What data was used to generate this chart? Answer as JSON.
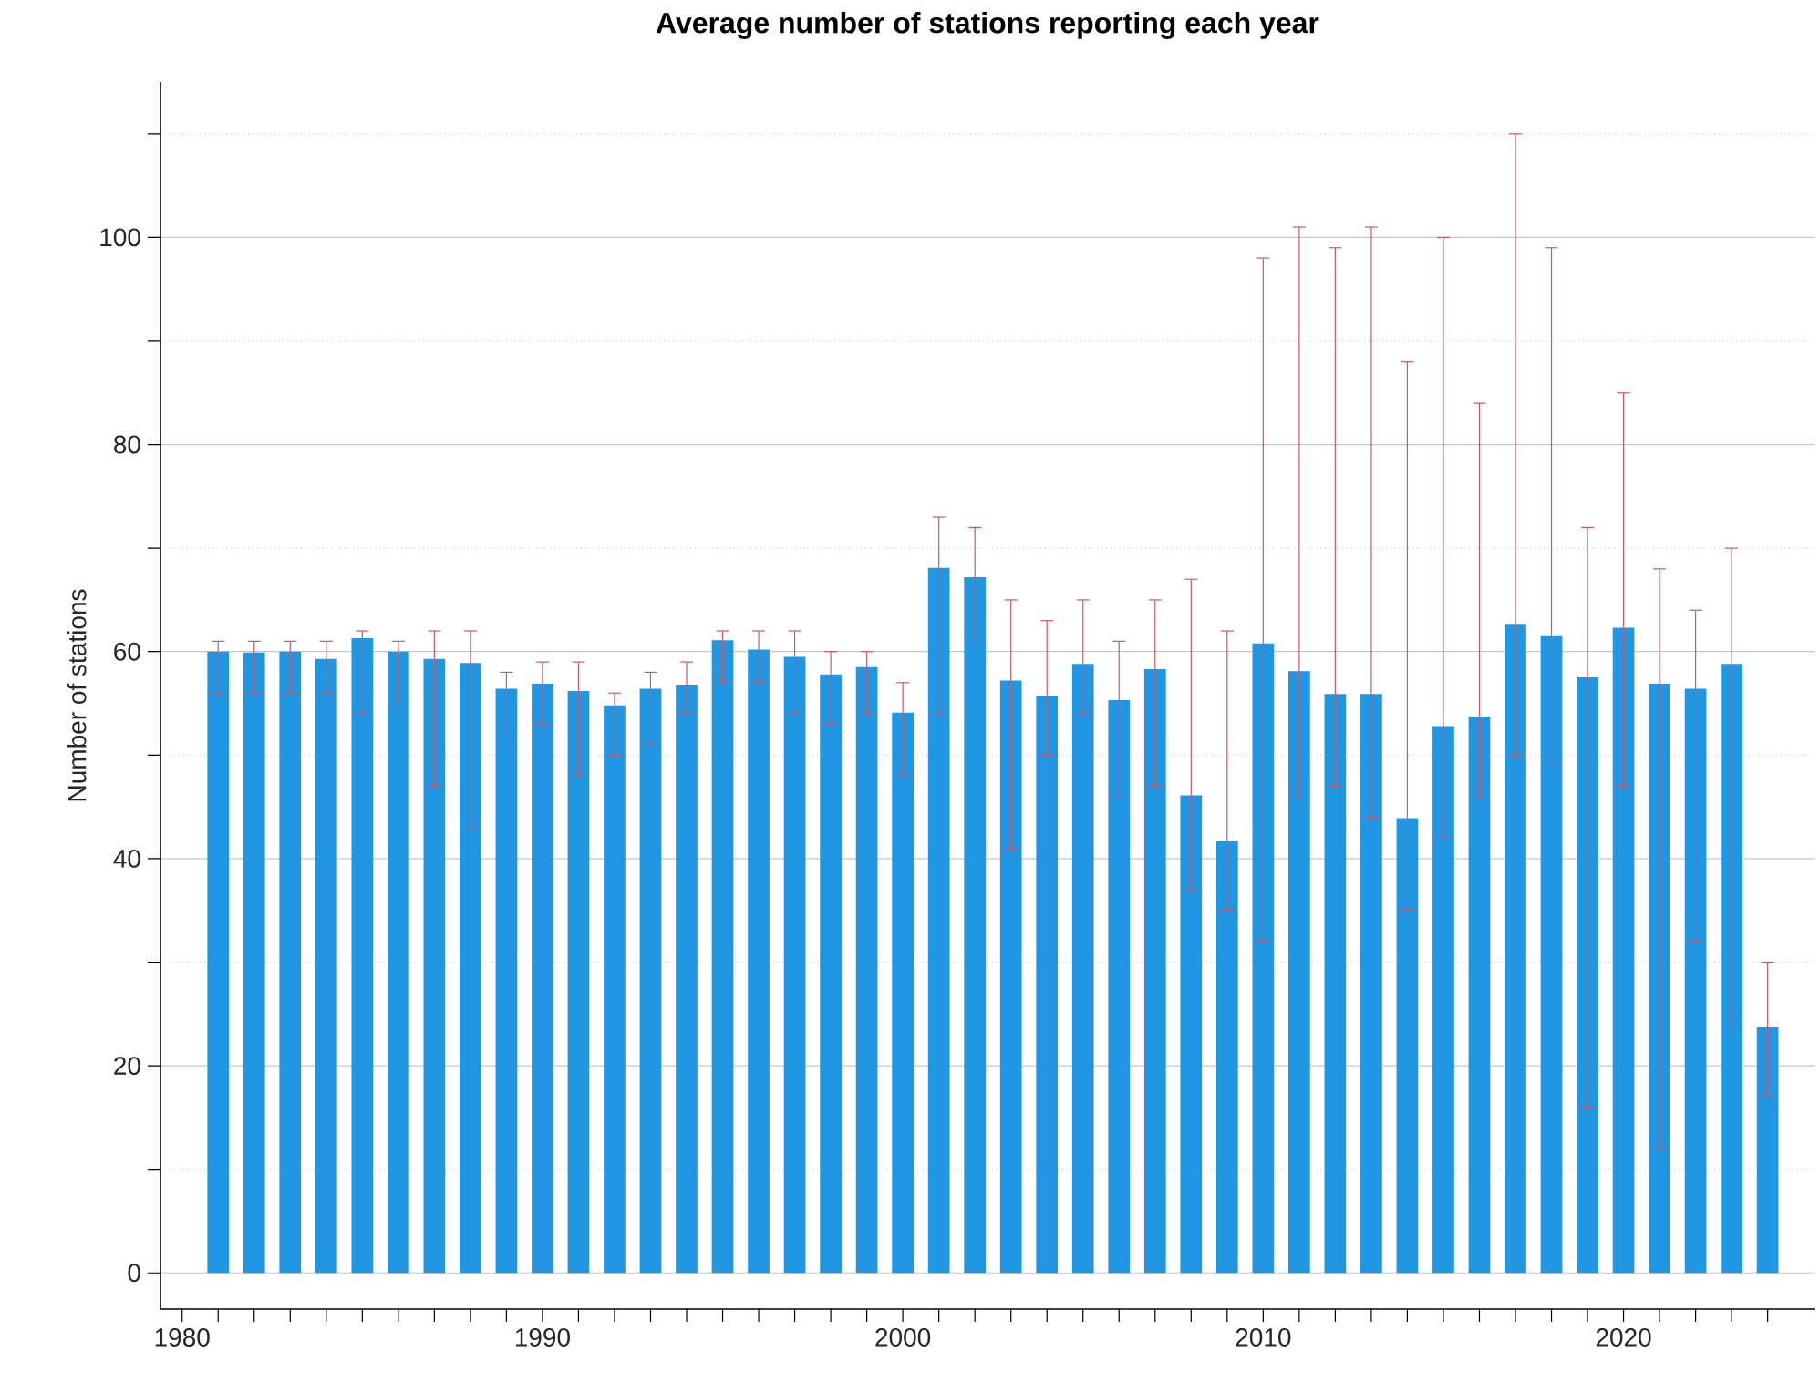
{
  "chart_data": {
    "type": "bar",
    "title": "Average number of stations reporting each year",
    "ylabel": "Number of stations",
    "x": [
      1981,
      1982,
      1983,
      1984,
      1985,
      1986,
      1987,
      1988,
      1989,
      1990,
      1991,
      1992,
      1993,
      1994,
      1995,
      1996,
      1997,
      1998,
      1999,
      2000,
      2001,
      2002,
      2003,
      2004,
      2005,
      2006,
      2007,
      2008,
      2009,
      2010,
      2011,
      2012,
      2013,
      2014,
      2015,
      2016,
      2017,
      2018,
      2019,
      2020,
      2021,
      2022,
      2023,
      2024
    ],
    "values": [
      60,
      59.9,
      60,
      59.3,
      61.3,
      60,
      59.3,
      58.9,
      56.4,
      56.9,
      56.2,
      54.8,
      56.4,
      56.8,
      61.1,
      60.2,
      59.5,
      57.8,
      58.5,
      54.1,
      68.1,
      67.2,
      57.2,
      55.7,
      58.8,
      55.3,
      58.3,
      46.1,
      41.7,
      60.8,
      58.1,
      55.9,
      55.9,
      43.9,
      52.8,
      53.7,
      62.6,
      61.5,
      57.5,
      62.3,
      56.9,
      56.4,
      58.8,
      23.7
    ],
    "errors": [
      [
        56,
        61
      ],
      [
        56,
        61
      ],
      [
        56,
        61
      ],
      [
        56,
        61
      ],
      [
        54,
        62
      ],
      [
        55,
        61
      ],
      [
        47,
        62
      ],
      [
        43,
        62
      ],
      [
        52,
        58
      ],
      [
        53,
        59
      ],
      [
        48,
        59
      ],
      [
        50,
        56
      ],
      [
        51,
        58
      ],
      [
        54,
        59
      ],
      [
        57,
        62
      ],
      [
        57,
        62
      ],
      [
        54,
        62
      ],
      [
        53,
        60
      ],
      [
        54,
        60
      ],
      [
        48,
        57
      ],
      [
        54,
        73
      ],
      [
        61,
        72
      ],
      [
        41,
        65
      ],
      [
        50,
        63
      ],
      [
        54,
        65
      ],
      [
        46,
        61
      ],
      [
        47,
        65
      ],
      [
        37,
        67
      ],
      [
        35,
        62
      ],
      [
        32,
        98
      ],
      [
        46,
        101
      ],
      [
        47,
        99
      ],
      [
        44,
        101
      ],
      [
        35,
        88
      ],
      [
        42,
        100
      ],
      [
        46,
        84
      ],
      [
        50,
        110
      ],
      [
        49,
        99
      ],
      [
        16,
        72
      ],
      [
        47,
        85
      ],
      [
        12,
        68
      ],
      [
        32,
        64
      ],
      [
        24,
        70
      ],
      [
        17,
        30
      ]
    ],
    "color": "#2196e3",
    "xlim": [
      1979.4,
      2025.3
    ],
    "xticks": [
      1980,
      {
        "value": 1981,
        "label": null
      },
      {
        "value": 1982,
        "label": null
      },
      {
        "value": 1983,
        "label": null
      },
      {
        "value": 1984,
        "label": null
      },
      {
        "value": 1985,
        "label": null
      },
      {
        "value": 1986,
        "label": null
      },
      {
        "value": 1987,
        "label": null
      },
      {
        "value": 1988,
        "label": null
      },
      {
        "value": 1989,
        "label": null
      },
      1990,
      {
        "value": 1991,
        "label": null
      },
      {
        "value": 1992,
        "label": null
      },
      {
        "value": 1993,
        "label": null
      },
      {
        "value": 1994,
        "label": null
      },
      {
        "value": 1995,
        "label": null
      },
      {
        "value": 1996,
        "label": null
      },
      {
        "value": 1997,
        "label": null
      },
      {
        "value": 1998,
        "label": null
      },
      {
        "value": 1999,
        "label": null
      },
      2000,
      {
        "value": 2001,
        "label": null
      },
      {
        "value": 2002,
        "label": null
      },
      {
        "value": 2003,
        "label": null
      },
      {
        "value": 2004,
        "label": null
      },
      {
        "value": 2005,
        "label": null
      },
      {
        "value": 2006,
        "label": null
      },
      {
        "value": 2007,
        "label": null
      },
      {
        "value": 2008,
        "label": null
      },
      {
        "value": 2009,
        "label": null
      },
      2010,
      {
        "value": 2011,
        "label": null
      },
      {
        "value": 2012,
        "label": null
      },
      {
        "value": 2013,
        "label": null
      },
      {
        "value": 2014,
        "label": null
      },
      {
        "value": 2015,
        "label": null
      },
      {
        "value": 2016,
        "label": null
      },
      {
        "value": 2017,
        "label": null
      },
      {
        "value": 2018,
        "label": null
      },
      {
        "value": 2019,
        "label": null
      },
      2020,
      {
        "value": 2021,
        "label": null
      },
      {
        "value": 2022,
        "label": null
      },
      {
        "value": 2023,
        "label": null
      },
      {
        "value": 2024,
        "label": null
      }
    ],
    "ylim": [
      -3.5,
      115
    ],
    "yticks": [
      0,
      {
        "value": 10,
        "label": null
      },
      20,
      {
        "value": 30,
        "label": null
      },
      40,
      {
        "value": 50,
        "label": null
      },
      60,
      {
        "value": 70,
        "label": null
      },
      80,
      {
        "value": 90,
        "label": null
      },
      100,
      {
        "value": 110,
        "label": null
      }
    ],
    "grid": "y"
  }
}
